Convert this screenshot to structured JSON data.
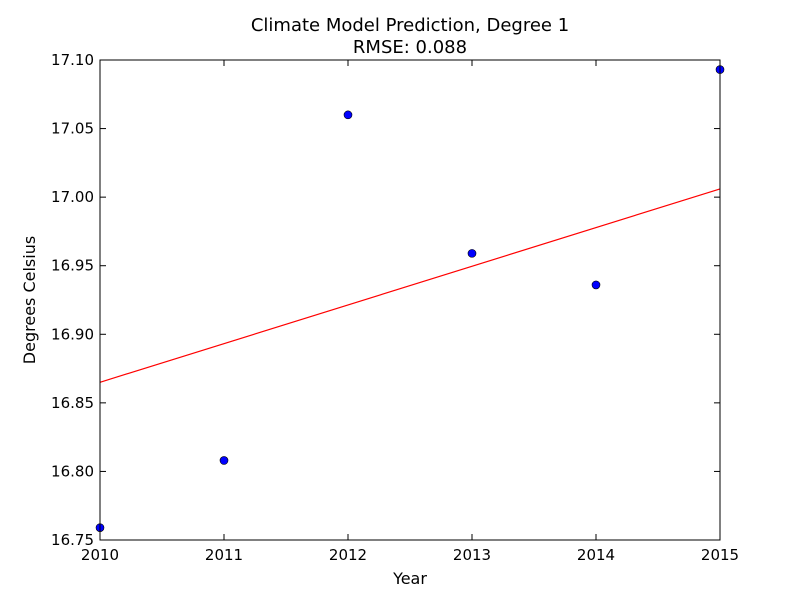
{
  "chart_data": {
    "type": "scatter",
    "title": "Climate Model Prediction, Degree 1",
    "subtitle": "RMSE: 0.088",
    "xlabel": "Year",
    "ylabel": "Degrees Celsius",
    "xlim": [
      2010,
      2015
    ],
    "ylim": [
      16.75,
      17.1
    ],
    "x_ticks": [
      "2010",
      "2011",
      "2012",
      "2013",
      "2014",
      "2015"
    ],
    "y_ticks": [
      "16.75",
      "16.80",
      "16.85",
      "16.90",
      "16.95",
      "17.00",
      "17.05",
      "17.10"
    ],
    "grid": false,
    "series": [
      {
        "type": "scatter",
        "x": [
          2010,
          2011,
          2012,
          2013,
          2014,
          2015
        ],
        "y": [
          16.759,
          16.808,
          17.06,
          16.959,
          16.936,
          17.093
        ]
      },
      {
        "type": "line",
        "x": [
          2010,
          2015
        ],
        "y": [
          16.865,
          17.006
        ]
      }
    ],
    "colors": {
      "points": "#0000ff",
      "fit_line": "#ff0000"
    }
  }
}
